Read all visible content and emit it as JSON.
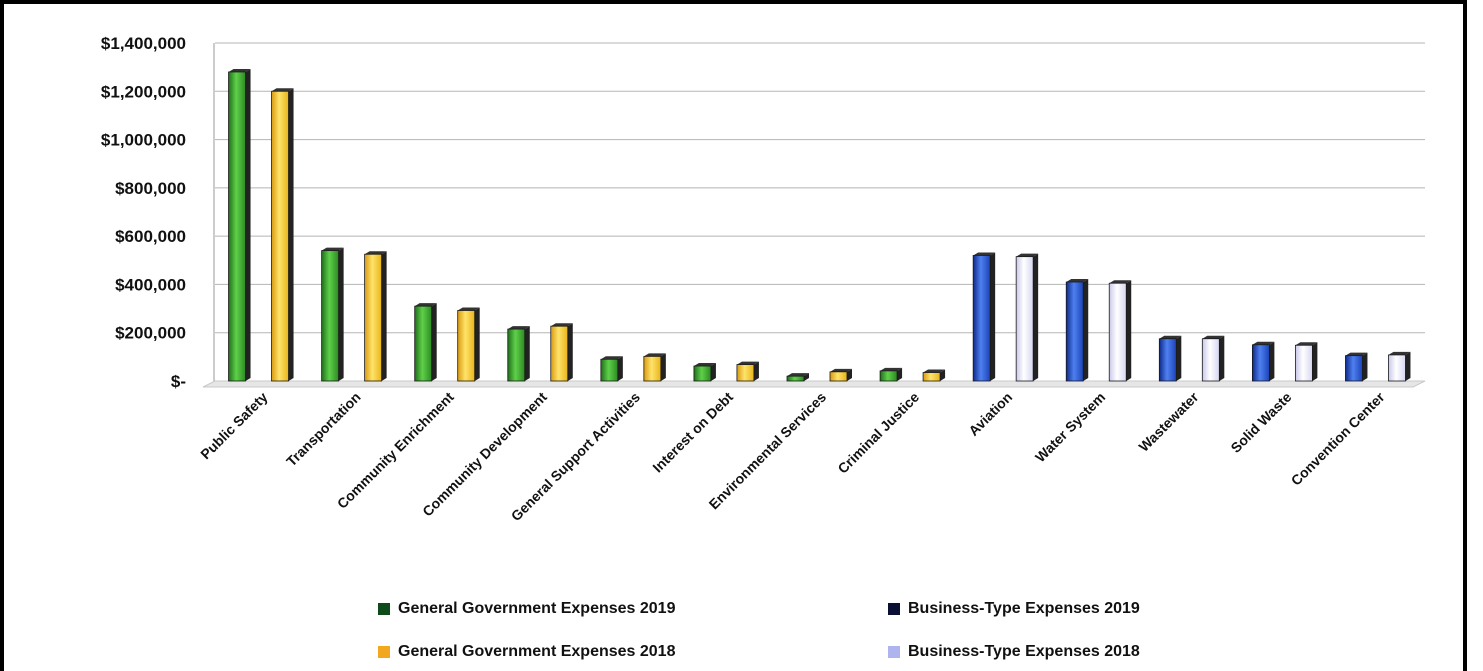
{
  "chart_data": {
    "type": "bar",
    "categories": [
      "Public Safety",
      "Transportation",
      "Community Enrichment",
      "Community Development",
      "General Support Activities",
      "Interest on Debt",
      "Environmental Services",
      "Criminal Justice",
      "Aviation",
      "Water System",
      "Wastewater",
      "Solid Waste",
      "Convention Center"
    ],
    "series": [
      {
        "name": "General Government Expenses 2019",
        "color": "#3aa02c",
        "values": [
          1280000,
          540000,
          310000,
          215000,
          90000,
          62000,
          20000,
          42000,
          null,
          null,
          null,
          null,
          null
        ]
      },
      {
        "name": "General Government Expenses 2018",
        "color": "#f2c01e",
        "values": [
          1200000,
          525000,
          292000,
          227000,
          102000,
          68000,
          38000,
          35000,
          null,
          null,
          null,
          null,
          null
        ]
      },
      {
        "name": "Business-Type Expenses 2019",
        "color": "#2350c8",
        "values": [
          null,
          null,
          null,
          null,
          null,
          null,
          null,
          null,
          520000,
          410000,
          175000,
          150000,
          105000
        ]
      },
      {
        "name": "Business-Type Expenses 2018",
        "color": "#e4e4f7",
        "values": [
          null,
          null,
          null,
          null,
          null,
          null,
          null,
          null,
          515000,
          405000,
          175000,
          148000,
          108000
        ]
      }
    ],
    "yticks": [
      "$1,400,000",
      "$1,200,000",
      "$1,000,000",
      "$800,000",
      "$600,000",
      "$400,000",
      "$200,000",
      "$-"
    ],
    "ylim": [
      0,
      1400000
    ],
    "grid": true,
    "legend_position": "bottom",
    "title": "",
    "xlabel": "",
    "ylabel": ""
  },
  "legend": {
    "gg2019": "General Government Expenses 2019",
    "bt2019": "Business-Type Expenses 2019",
    "gg2018": "General Government Expenses 2018",
    "bt2018": "Business-Type Expenses 2018",
    "colors": {
      "gg2019": "#0e4a1a",
      "bt2019": "#0a1033",
      "gg2018": "#f2a81e",
      "bt2018": "#aeb4ee"
    }
  }
}
